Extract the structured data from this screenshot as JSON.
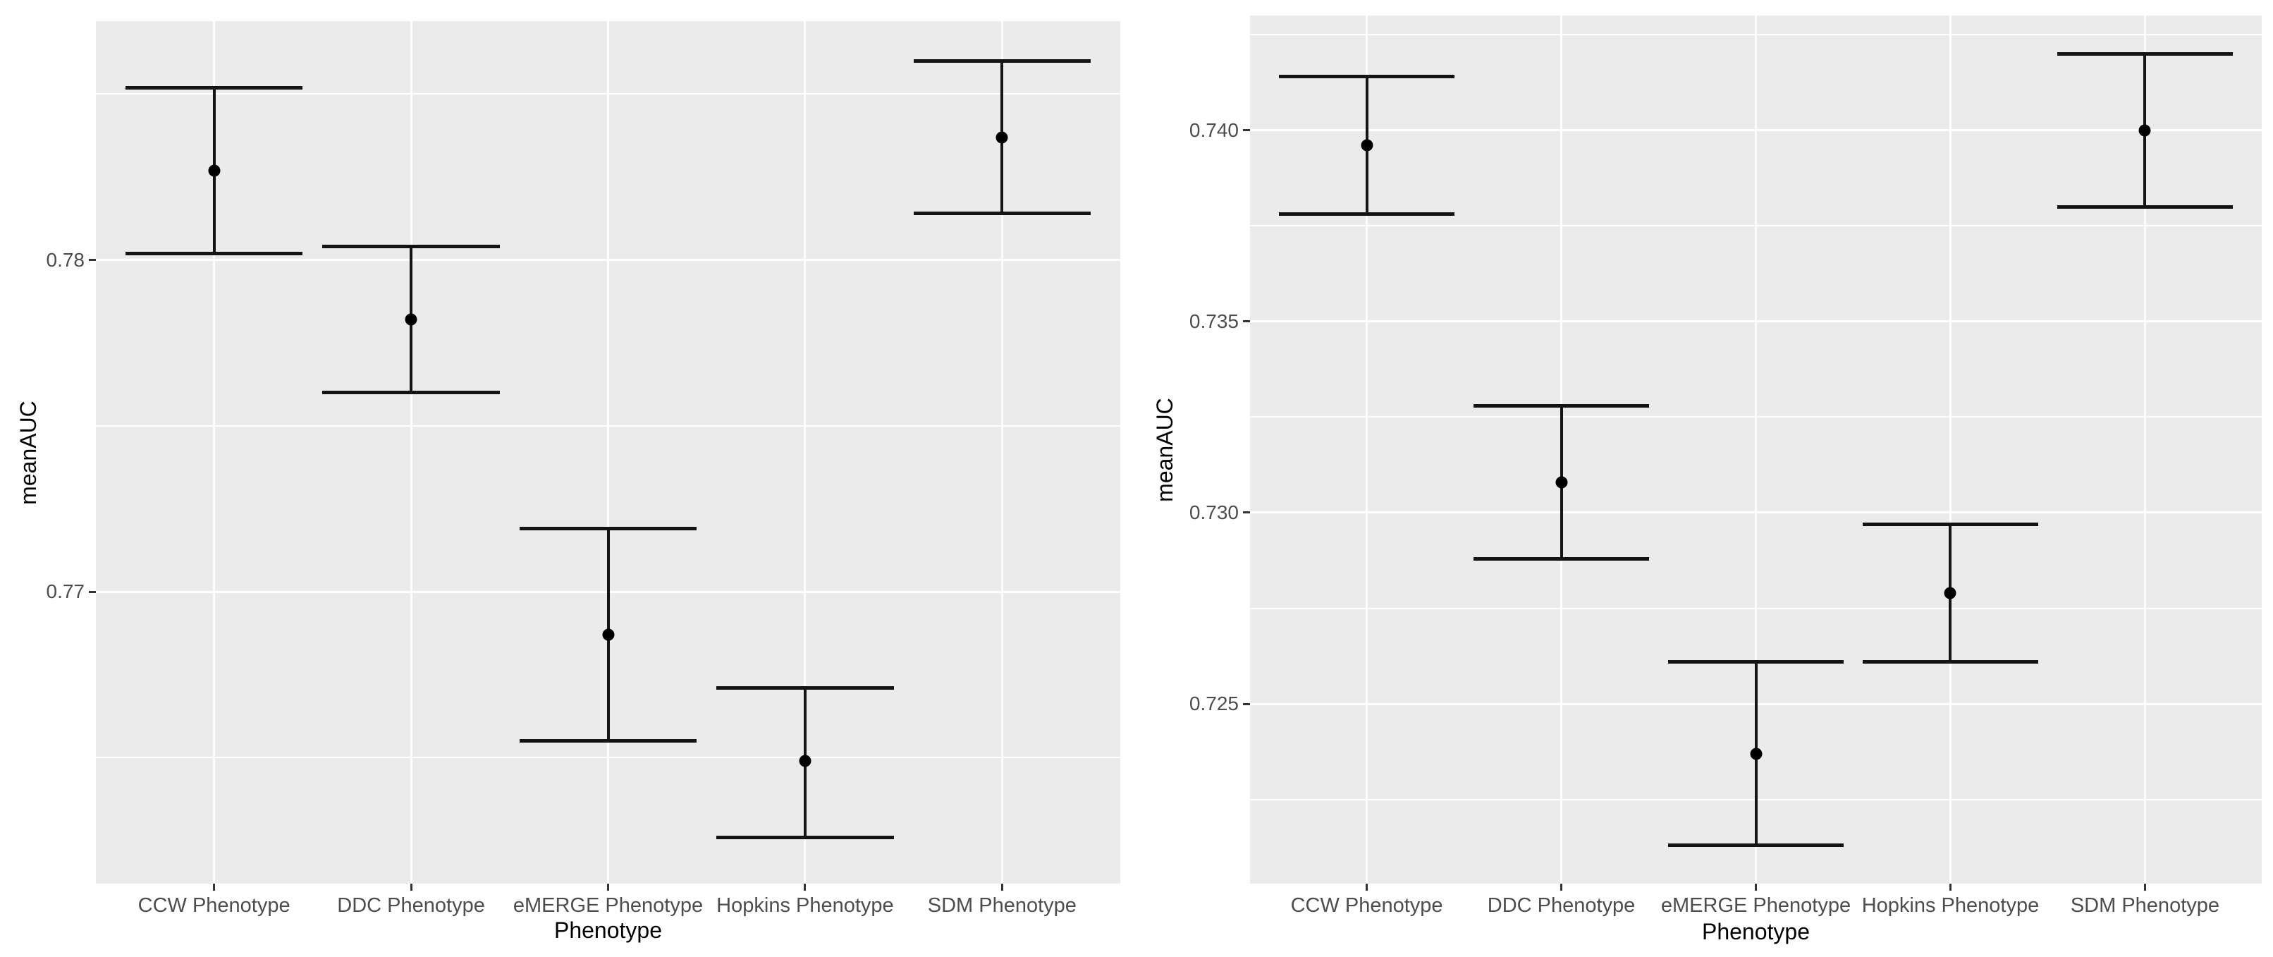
{
  "page": {
    "background": "#ffffff"
  },
  "style": {
    "panel_bg": "#ebebeb",
    "grid_color": "#ffffff",
    "tick_text_color": "#4d4d4d",
    "axis_title_color": "#000000",
    "data_color": "#141414",
    "tick_mark_color": "#333333"
  },
  "chart_data": [
    {
      "type": "scatter",
      "subtype": "point-with-errorbar",
      "title": "",
      "xlabel": "Phenotype",
      "ylabel": "meanAUC",
      "categories": [
        "CCW Phenotype",
        "DDC Phenotype",
        "eMERGE Phenotype",
        "Hopkins Phenotype",
        "SDM Phenotype"
      ],
      "series": [
        {
          "name": "meanAUC",
          "points": [
            {
              "category": "CCW Phenotype",
              "mean": 0.7827,
              "lower": 0.7802,
              "upper": 0.7852
            },
            {
              "category": "DDC Phenotype",
              "mean": 0.7782,
              "lower": 0.776,
              "upper": 0.7804
            },
            {
              "category": "eMERGE Phenotype",
              "mean": 0.7687,
              "lower": 0.7655,
              "upper": 0.7719
            },
            {
              "category": "Hopkins Phenotype",
              "mean": 0.7649,
              "lower": 0.7626,
              "upper": 0.7671
            },
            {
              "category": "SDM Phenotype",
              "mean": 0.7837,
              "lower": 0.7814,
              "upper": 0.786
            }
          ]
        }
      ],
      "ylim": [
        0.7612,
        0.7872
      ],
      "yticks": [
        {
          "value": 0.77,
          "label": "0.77"
        },
        {
          "value": 0.78,
          "label": "0.78"
        }
      ],
      "yticks_minor": [
        0.765,
        0.775,
        0.785
      ],
      "grid": "white horizontal major+minor lines, white vertical major line per category, grey panel",
      "legend": "none"
    },
    {
      "type": "scatter",
      "subtype": "point-with-errorbar",
      "title": "",
      "xlabel": "Phenotype",
      "ylabel": "meanAUC",
      "categories": [
        "CCW Phenotype",
        "DDC Phenotype",
        "eMERGE Phenotype",
        "Hopkins Phenotype",
        "SDM Phenotype"
      ],
      "series": [
        {
          "name": "meanAUC",
          "points": [
            {
              "category": "CCW Phenotype",
              "mean": 0.7396,
              "lower": 0.7378,
              "upper": 0.7414
            },
            {
              "category": "DDC Phenotype",
              "mean": 0.7308,
              "lower": 0.7288,
              "upper": 0.7328
            },
            {
              "category": "eMERGE Phenotype",
              "mean": 0.7237,
              "lower": 0.7213,
              "upper": 0.7261
            },
            {
              "category": "Hopkins Phenotype",
              "mean": 0.7279,
              "lower": 0.7261,
              "upper": 0.7297
            },
            {
              "category": "SDM Phenotype",
              "mean": 0.74,
              "lower": 0.738,
              "upper": 0.742
            }
          ]
        }
      ],
      "ylim": [
        0.7203,
        0.743
      ],
      "yticks": [
        {
          "value": 0.725,
          "label": "0.725"
        },
        {
          "value": 0.73,
          "label": "0.730"
        },
        {
          "value": 0.735,
          "label": "0.735"
        },
        {
          "value": 0.74,
          "label": "0.740"
        }
      ],
      "yticks_minor": [
        0.7225,
        0.7275,
        0.7325,
        0.7375,
        0.7425
      ],
      "grid": "white horizontal major+minor lines, white vertical major line per category, grey panel",
      "legend": "none"
    }
  ]
}
